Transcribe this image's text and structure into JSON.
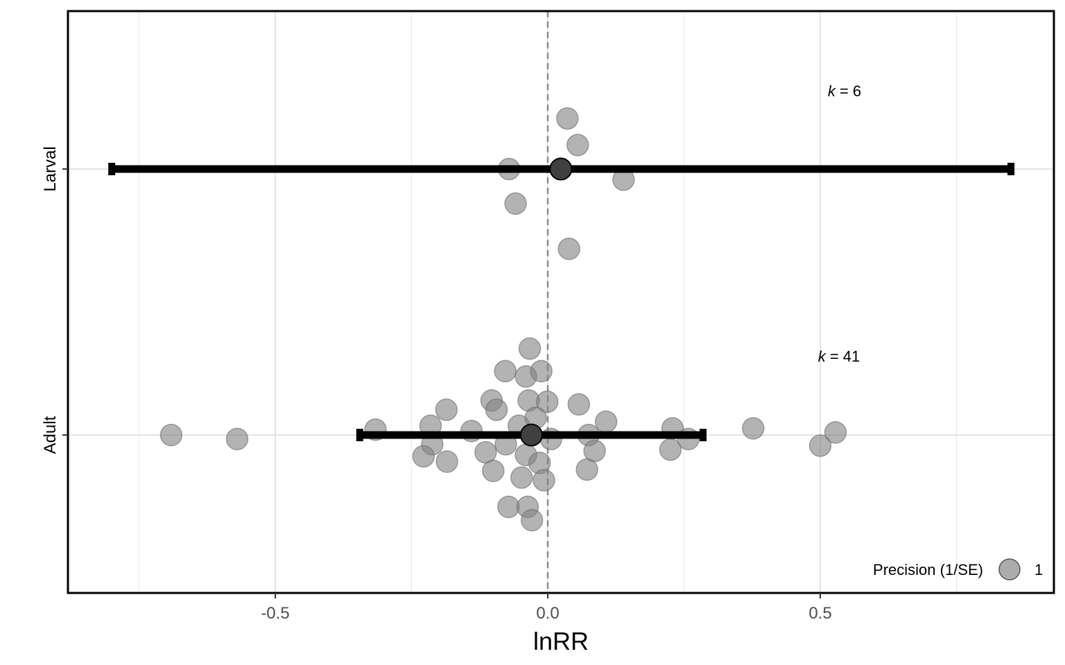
{
  "chart_data": {
    "type": "scatter",
    "title": "",
    "xlabel": "lnRR",
    "ylabel": "",
    "xlim": [
      -0.88,
      0.93
    ],
    "x_ticks": [
      -0.5,
      0.0,
      0.5
    ],
    "x_tick_labels": [
      "-0.5",
      "0.0",
      "0.5"
    ],
    "grid": true,
    "reference_line": {
      "x": 0,
      "style": "dashed"
    },
    "categories": [
      "Larval",
      "Adult"
    ],
    "annotations": [
      {
        "category": "Larval",
        "k_label": "k",
        "eq_label": " = 6"
      },
      {
        "category": "Adult",
        "k_label": "k",
        "eq_label": " = 41"
      }
    ],
    "estimates": [
      {
        "category": "Larval",
        "mean": 0.024,
        "ci_low": -0.8,
        "ci_high": 0.85
      },
      {
        "category": "Adult",
        "mean": -0.03,
        "ci_low": -0.345,
        "ci_high": 0.285
      }
    ],
    "points": [
      {
        "category": "Larval",
        "x": 0.036,
        "jitter": 0.19
      },
      {
        "category": "Larval",
        "x": 0.055,
        "jitter": 0.09
      },
      {
        "category": "Larval",
        "x": -0.071,
        "jitter": 0.0
      },
      {
        "category": "Larval",
        "x": 0.139,
        "jitter": -0.04
      },
      {
        "category": "Larval",
        "x": -0.059,
        "jitter": -0.13
      },
      {
        "category": "Larval",
        "x": 0.039,
        "jitter": -0.3
      },
      {
        "category": "Adult",
        "x": -0.691,
        "jitter": 0.0
      },
      {
        "category": "Adult",
        "x": -0.57,
        "jitter": -0.015
      },
      {
        "category": "Adult",
        "x": -0.316,
        "jitter": 0.02
      },
      {
        "category": "Adult",
        "x": -0.215,
        "jitter": 0.035
      },
      {
        "category": "Adult",
        "x": -0.212,
        "jitter": -0.035
      },
      {
        "category": "Adult",
        "x": -0.228,
        "jitter": -0.08
      },
      {
        "category": "Adult",
        "x": -0.186,
        "jitter": 0.095
      },
      {
        "category": "Adult",
        "x": -0.185,
        "jitter": -0.1
      },
      {
        "category": "Adult",
        "x": -0.14,
        "jitter": 0.015
      },
      {
        "category": "Adult",
        "x": -0.114,
        "jitter": -0.065
      },
      {
        "category": "Adult",
        "x": -0.103,
        "jitter": 0.13
      },
      {
        "category": "Adult",
        "x": -0.094,
        "jitter": 0.095
      },
      {
        "category": "Adult",
        "x": -0.1,
        "jitter": -0.135
      },
      {
        "category": "Adult",
        "x": -0.078,
        "jitter": 0.24
      },
      {
        "category": "Adult",
        "x": -0.077,
        "jitter": -0.035
      },
      {
        "category": "Adult",
        "x": -0.072,
        "jitter": -0.27
      },
      {
        "category": "Adult",
        "x": -0.053,
        "jitter": 0.035
      },
      {
        "category": "Adult",
        "x": -0.048,
        "jitter": -0.16
      },
      {
        "category": "Adult",
        "x": -0.04,
        "jitter": 0.22
      },
      {
        "category": "Adult",
        "x": -0.035,
        "jitter": 0.13
      },
      {
        "category": "Adult",
        "x": -0.04,
        "jitter": -0.075
      },
      {
        "category": "Adult",
        "x": -0.037,
        "jitter": -0.27
      },
      {
        "category": "Adult",
        "x": -0.033,
        "jitter": 0.325
      },
      {
        "category": "Adult",
        "x": -0.029,
        "jitter": -0.32
      },
      {
        "category": "Adult",
        "x": -0.022,
        "jitter": 0.065
      },
      {
        "category": "Adult",
        "x": -0.012,
        "jitter": 0.24
      },
      {
        "category": "Adult",
        "x": -0.015,
        "jitter": -0.105
      },
      {
        "category": "Adult",
        "x": -0.007,
        "jitter": -0.17
      },
      {
        "category": "Adult",
        "x": -0.001,
        "jitter": 0.125
      },
      {
        "category": "Adult",
        "x": 0.006,
        "jitter": -0.015
      },
      {
        "category": "Adult",
        "x": 0.057,
        "jitter": 0.115
      },
      {
        "category": "Adult",
        "x": 0.075,
        "jitter": 0.0
      },
      {
        "category": "Adult",
        "x": 0.072,
        "jitter": -0.13
      },
      {
        "category": "Adult",
        "x": 0.086,
        "jitter": -0.06
      },
      {
        "category": "Adult",
        "x": 0.107,
        "jitter": 0.05
      },
      {
        "category": "Adult",
        "x": 0.229,
        "jitter": 0.025
      },
      {
        "category": "Adult",
        "x": 0.225,
        "jitter": -0.055
      },
      {
        "category": "Adult",
        "x": 0.258,
        "jitter": -0.015
      },
      {
        "category": "Adult",
        "x": 0.377,
        "jitter": 0.025
      },
      {
        "category": "Adult",
        "x": 0.5,
        "jitter": -0.04
      },
      {
        "category": "Adult",
        "x": 0.528,
        "jitter": 0.01
      }
    ],
    "point_color": "#808080",
    "estimate_color": "#404040",
    "ci_color": "#000000",
    "legend": {
      "title": "Precision (1/SE)",
      "value_label": "1",
      "placement": "bottom-right"
    }
  }
}
